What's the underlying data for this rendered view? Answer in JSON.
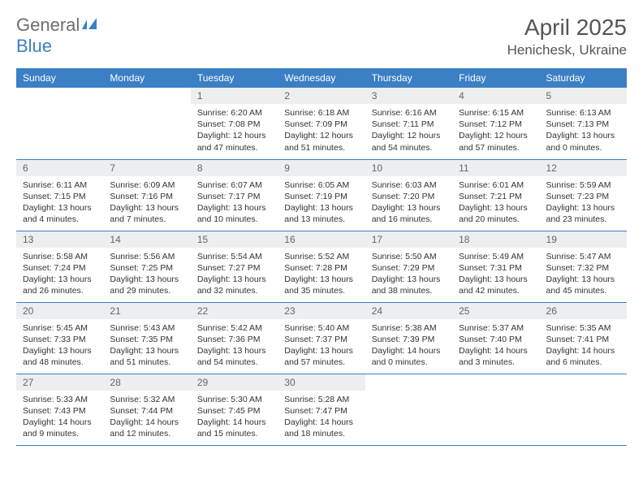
{
  "brand": {
    "part1": "General",
    "part2": "Blue"
  },
  "title": "April 2025",
  "location": "Henichesk, Ukraine",
  "colors": {
    "header_bg": "#3b7fc4",
    "header_text": "#ffffff",
    "daynum_bg": "#eceeef",
    "border": "#3b7fc4",
    "logo_gray": "#6e6e6e",
    "logo_blue": "#3b7fc4"
  },
  "day_headers": [
    "Sunday",
    "Monday",
    "Tuesday",
    "Wednesday",
    "Thursday",
    "Friday",
    "Saturday"
  ],
  "weeks": [
    [
      {
        "empty": true
      },
      {
        "empty": true
      },
      {
        "n": "1",
        "sunrise": "6:20 AM",
        "sunset": "7:08 PM",
        "daylight": "12 hours and 47 minutes."
      },
      {
        "n": "2",
        "sunrise": "6:18 AM",
        "sunset": "7:09 PM",
        "daylight": "12 hours and 51 minutes."
      },
      {
        "n": "3",
        "sunrise": "6:16 AM",
        "sunset": "7:11 PM",
        "daylight": "12 hours and 54 minutes."
      },
      {
        "n": "4",
        "sunrise": "6:15 AM",
        "sunset": "7:12 PM",
        "daylight": "12 hours and 57 minutes."
      },
      {
        "n": "5",
        "sunrise": "6:13 AM",
        "sunset": "7:13 PM",
        "daylight": "13 hours and 0 minutes."
      }
    ],
    [
      {
        "n": "6",
        "sunrise": "6:11 AM",
        "sunset": "7:15 PM",
        "daylight": "13 hours and 4 minutes."
      },
      {
        "n": "7",
        "sunrise": "6:09 AM",
        "sunset": "7:16 PM",
        "daylight": "13 hours and 7 minutes."
      },
      {
        "n": "8",
        "sunrise": "6:07 AM",
        "sunset": "7:17 PM",
        "daylight": "13 hours and 10 minutes."
      },
      {
        "n": "9",
        "sunrise": "6:05 AM",
        "sunset": "7:19 PM",
        "daylight": "13 hours and 13 minutes."
      },
      {
        "n": "10",
        "sunrise": "6:03 AM",
        "sunset": "7:20 PM",
        "daylight": "13 hours and 16 minutes."
      },
      {
        "n": "11",
        "sunrise": "6:01 AM",
        "sunset": "7:21 PM",
        "daylight": "13 hours and 20 minutes."
      },
      {
        "n": "12",
        "sunrise": "5:59 AM",
        "sunset": "7:23 PM",
        "daylight": "13 hours and 23 minutes."
      }
    ],
    [
      {
        "n": "13",
        "sunrise": "5:58 AM",
        "sunset": "7:24 PM",
        "daylight": "13 hours and 26 minutes."
      },
      {
        "n": "14",
        "sunrise": "5:56 AM",
        "sunset": "7:25 PM",
        "daylight": "13 hours and 29 minutes."
      },
      {
        "n": "15",
        "sunrise": "5:54 AM",
        "sunset": "7:27 PM",
        "daylight": "13 hours and 32 minutes."
      },
      {
        "n": "16",
        "sunrise": "5:52 AM",
        "sunset": "7:28 PM",
        "daylight": "13 hours and 35 minutes."
      },
      {
        "n": "17",
        "sunrise": "5:50 AM",
        "sunset": "7:29 PM",
        "daylight": "13 hours and 38 minutes."
      },
      {
        "n": "18",
        "sunrise": "5:49 AM",
        "sunset": "7:31 PM",
        "daylight": "13 hours and 42 minutes."
      },
      {
        "n": "19",
        "sunrise": "5:47 AM",
        "sunset": "7:32 PM",
        "daylight": "13 hours and 45 minutes."
      }
    ],
    [
      {
        "n": "20",
        "sunrise": "5:45 AM",
        "sunset": "7:33 PM",
        "daylight": "13 hours and 48 minutes."
      },
      {
        "n": "21",
        "sunrise": "5:43 AM",
        "sunset": "7:35 PM",
        "daylight": "13 hours and 51 minutes."
      },
      {
        "n": "22",
        "sunrise": "5:42 AM",
        "sunset": "7:36 PM",
        "daylight": "13 hours and 54 minutes."
      },
      {
        "n": "23",
        "sunrise": "5:40 AM",
        "sunset": "7:37 PM",
        "daylight": "13 hours and 57 minutes."
      },
      {
        "n": "24",
        "sunrise": "5:38 AM",
        "sunset": "7:39 PM",
        "daylight": "14 hours and 0 minutes."
      },
      {
        "n": "25",
        "sunrise": "5:37 AM",
        "sunset": "7:40 PM",
        "daylight": "14 hours and 3 minutes."
      },
      {
        "n": "26",
        "sunrise": "5:35 AM",
        "sunset": "7:41 PM",
        "daylight": "14 hours and 6 minutes."
      }
    ],
    [
      {
        "n": "27",
        "sunrise": "5:33 AM",
        "sunset": "7:43 PM",
        "daylight": "14 hours and 9 minutes."
      },
      {
        "n": "28",
        "sunrise": "5:32 AM",
        "sunset": "7:44 PM",
        "daylight": "14 hours and 12 minutes."
      },
      {
        "n": "29",
        "sunrise": "5:30 AM",
        "sunset": "7:45 PM",
        "daylight": "14 hours and 15 minutes."
      },
      {
        "n": "30",
        "sunrise": "5:28 AM",
        "sunset": "7:47 PM",
        "daylight": "14 hours and 18 minutes."
      },
      {
        "empty": true
      },
      {
        "empty": true
      },
      {
        "empty": true
      }
    ]
  ],
  "labels": {
    "sunrise": "Sunrise: ",
    "sunset": "Sunset: ",
    "daylight": "Daylight: "
  }
}
